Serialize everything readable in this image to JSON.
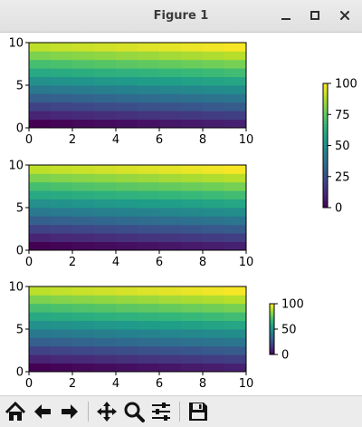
{
  "window": {
    "title": "Figure 1",
    "buttons": [
      "minimize-icon",
      "maximize-icon",
      "close-icon"
    ]
  },
  "toolbar": {
    "buttons": [
      "home-icon",
      "back-arrow-icon",
      "forward-arrow-icon",
      "pan-move-icon",
      "zoom-magnifier-icon",
      "configure-subplots-icon",
      "save-floppy-icon"
    ]
  },
  "colormap": "viridis",
  "chart_data": [
    {
      "type": "heatmap",
      "title": "",
      "x_ticks": [
        "0",
        "2",
        "4",
        "6",
        "8",
        "10"
      ],
      "y_ticks": [
        "0",
        "5",
        "10"
      ],
      "xlim": [
        0,
        10
      ],
      "ylim": [
        0,
        10
      ],
      "cells_x": 10,
      "cells_y": 10,
      "value_min": 0,
      "value_max": 100,
      "colorbar": {
        "ticks": [
          "0",
          "25",
          "50",
          "75",
          "100"
        ]
      }
    },
    {
      "type": "heatmap",
      "title": "",
      "x_ticks": [
        "0",
        "2",
        "4",
        "6",
        "8",
        "10"
      ],
      "y_ticks": [
        "0",
        "5",
        "10"
      ],
      "xlim": [
        0,
        10
      ],
      "ylim": [
        0,
        10
      ],
      "cells_x": 10,
      "cells_y": 10,
      "value_min": 0,
      "value_max": 100
    },
    {
      "type": "heatmap",
      "title": "",
      "x_ticks": [
        "0",
        "2",
        "4",
        "6",
        "8",
        "10"
      ],
      "y_ticks": [
        "0",
        "5",
        "10"
      ],
      "xlim": [
        0,
        10
      ],
      "ylim": [
        0,
        10
      ],
      "cells_x": 10,
      "cells_y": 10,
      "value_min": 0,
      "value_max": 100,
      "colorbar": {
        "ticks": [
          "0",
          "50",
          "100"
        ]
      }
    }
  ]
}
